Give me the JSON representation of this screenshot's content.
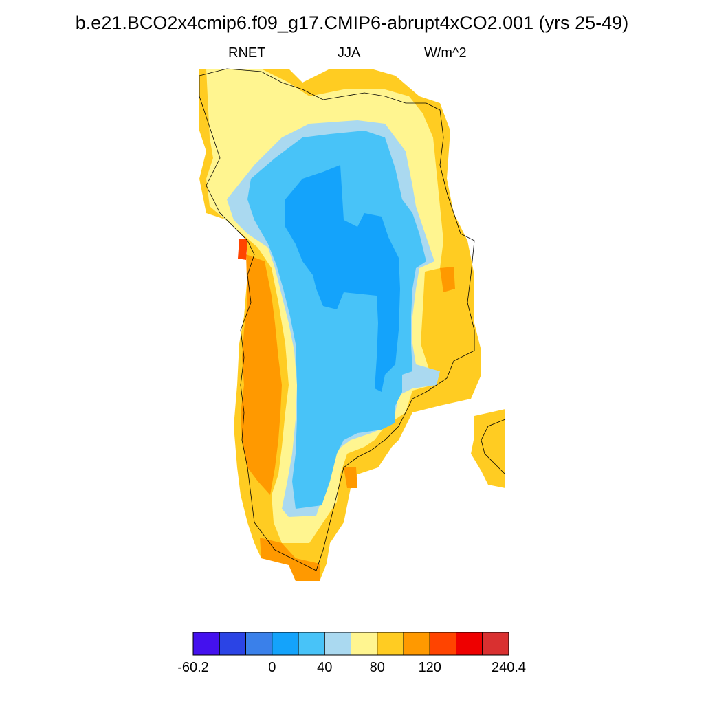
{
  "title": "b.e21.BCO2x4cmip6.f09_g17.CMIP6-abrupt4xCO2.001 (yrs 25-49)",
  "subtitle": {
    "variable": "RNET",
    "season": "JJA",
    "units": "W/m^2"
  },
  "colorbar": {
    "colors": [
      "#4411ee",
      "#2b44e5",
      "#3a80ea",
      "#14a3fb",
      "#48c3f8",
      "#aad9f0",
      "#fff590",
      "#ffcc22",
      "#ff9900",
      "#ff4400",
      "#ee0000",
      "#d93030"
    ],
    "tick_labels": [
      "-60.2",
      "0",
      "40",
      "80",
      "120",
      "240.4"
    ]
  },
  "map": {
    "region": "Greenland",
    "land_color": "#ffcc22"
  }
}
